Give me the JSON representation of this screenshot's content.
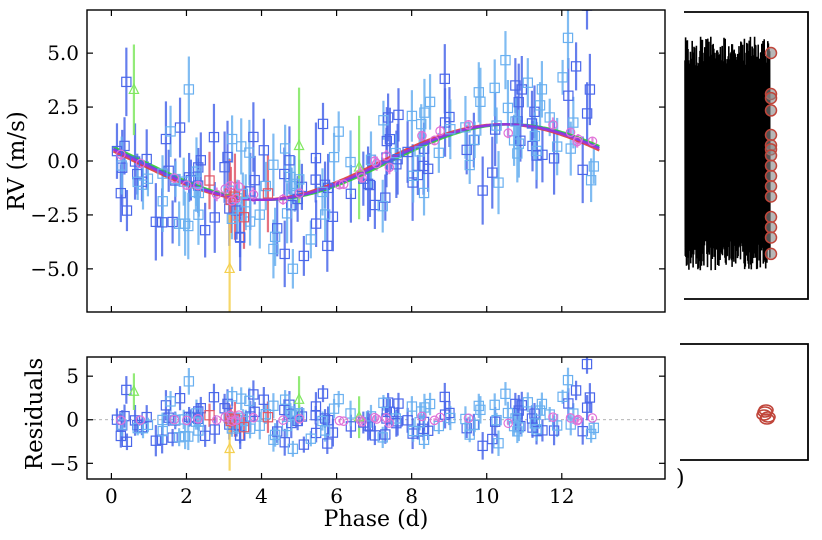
{
  "chart_data": [
    {
      "type": "scatter",
      "panel": "rv",
      "ylabel": "RV (m/s)",
      "xlabel": "",
      "xlim": [
        -0.65,
        14.75
      ],
      "ylim": [
        -7.0,
        7.0
      ],
      "yticks": [
        5.0,
        2.5,
        0.0,
        -2.5,
        -5.0
      ],
      "ytick_labels": [
        "5.0",
        "2.5",
        "0.0",
        "−2.5",
        "−5.0"
      ],
      "xticks": [
        0,
        2,
        4,
        6,
        8,
        10,
        12
      ],
      "model": {
        "amplitude": 1.75,
        "offset": -0.05,
        "phase_of_max": 10.5,
        "period": 13.0
      },
      "model_curves": [
        {
          "name": "model-green",
          "color": "#32c832",
          "shift": 0.15
        },
        {
          "name": "model-red",
          "color": "#dc3c3c",
          "shift": -0.1
        },
        {
          "name": "model-blue",
          "color": "#3c5ae6",
          "shift": 0.05
        },
        {
          "name": "model-purple",
          "color": "#a032dc",
          "shift": 0.0
        }
      ],
      "series": [
        {
          "name": "instrument-dark-blue",
          "marker": "square",
          "color": "#4a67ea",
          "seed": 7,
          "n": 95,
          "x_range": [
            0.05,
            13.0
          ],
          "scatter": 1.7,
          "err": [
            0.9,
            1.8
          ]
        },
        {
          "name": "instrument-light-blue",
          "marker": "square",
          "color": "#6ab0f0",
          "seed": 19,
          "n": 85,
          "x_range": [
            0.1,
            12.9
          ],
          "scatter": 1.6,
          "err": [
            0.8,
            1.6
          ]
        },
        {
          "name": "instrument-magenta",
          "marker": "circle",
          "color": "#e070d8",
          "seed": 31,
          "n": 32,
          "x_range": [
            0.2,
            13.1
          ],
          "scatter": 0.25,
          "err": [
            0.15,
            0.35
          ]
        },
        {
          "name": "instrument-red",
          "marker": "square",
          "color": "#e05868",
          "seed": 43,
          "n": 6,
          "x_range": [
            2.5,
            5.2
          ],
          "scatter": 1.0,
          "err": [
            1.3,
            2.2
          ]
        },
        {
          "name": "instrument-green",
          "marker": "triangle",
          "color": "#80e860",
          "seed": 0,
          "points": [
            {
              "x": 0.6,
              "y": 3.3,
              "err": 2.1
            },
            {
              "x": 5.0,
              "y": 0.7,
              "err": 2.7
            },
            {
              "x": 6.6,
              "y": -0.3,
              "err": 2.4
            }
          ]
        },
        {
          "name": "instrument-yellow",
          "marker": "triangle",
          "color": "#f4d050",
          "seed": 0,
          "points": [
            {
              "x": 3.15,
              "y": -5.0,
              "err": 2.5
            }
          ]
        }
      ]
    },
    {
      "type": "scatter",
      "panel": "residuals",
      "ylabel": "Residuals",
      "xlabel": "Phase (d)",
      "xlim": [
        -0.65,
        14.75
      ],
      "ylim": [
        -6.8,
        7.2
      ],
      "yticks": [
        5,
        0,
        -5
      ],
      "ytick_labels": [
        "5",
        "0",
        "−5"
      ],
      "xticks": [
        0,
        2,
        4,
        6,
        8,
        10,
        12
      ],
      "xtick_labels": [
        "0",
        "2",
        "4",
        "6",
        "8",
        "10",
        "12"
      ]
    },
    {
      "type": "line",
      "panel": "side-top",
      "ylim": [
        -7.0,
        7.0
      ],
      "fill_color": "#000000",
      "open_circle_color": "#c0453a",
      "circles_y": [
        5.0,
        3.0,
        2.8,
        2.2,
        1.0,
        0.5,
        0.3,
        0.0,
        -0.5,
        -1.0,
        -1.5,
        -2.0,
        -3.0,
        -3.5,
        -4.0,
        -4.8
      ]
    },
    {
      "type": "scatter",
      "panel": "side-bottom",
      "label_fragment": ")",
      "open_circle_color": "#c0453a",
      "circles": [
        {
          "x": 0.5,
          "y": 1.8
        },
        {
          "x": 0.4,
          "y": 1.3
        },
        {
          "x": 0.55,
          "y": 0.9
        },
        {
          "x": 0.45,
          "y": 1.6
        },
        {
          "x": 0.6,
          "y": 1.1
        }
      ]
    }
  ]
}
